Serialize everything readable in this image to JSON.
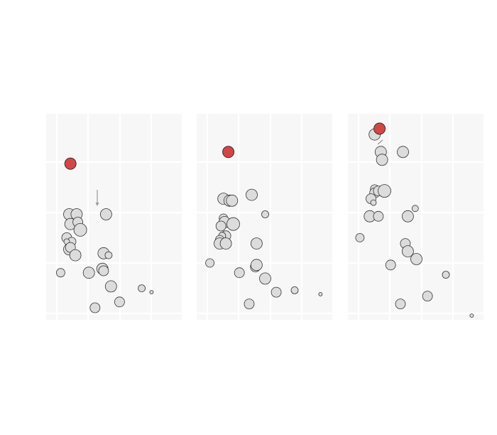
{
  "chart_data": [
    {
      "type": "scatter",
      "title": "",
      "xlabel": "",
      "ylabel": "",
      "xlim": [
        0,
        100
      ],
      "ylim": [
        0,
        100
      ],
      "grid": true,
      "legend": "none",
      "colors": {
        "default": "#dcdcdc",
        "highlight": "#d64545",
        "panel": "#f7f7f7",
        "grid": "#ffffff"
      },
      "points": [
        {
          "x": 14,
          "y": 78,
          "size": 8,
          "highlight": true
        },
        {
          "x": 13,
          "y": 52,
          "size": 8
        },
        {
          "x": 19,
          "y": 52,
          "size": 8
        },
        {
          "x": 14,
          "y": 47,
          "size": 8
        },
        {
          "x": 20,
          "y": 48,
          "size": 7
        },
        {
          "x": 22,
          "y": 44,
          "size": 9
        },
        {
          "x": 11,
          "y": 40,
          "size": 7
        },
        {
          "x": 15,
          "y": 38,
          "size": 6
        },
        {
          "x": 11,
          "y": 38,
          "size": 4
        },
        {
          "x": 13,
          "y": 34,
          "size": 8
        },
        {
          "x": 14,
          "y": 35,
          "size": 7
        },
        {
          "x": 18,
          "y": 31,
          "size": 8
        },
        {
          "x": 6,
          "y": 22,
          "size": 6
        },
        {
          "x": 43,
          "y": 52,
          "size": 8
        },
        {
          "x": 41,
          "y": 32,
          "size": 8
        },
        {
          "x": 45,
          "y": 31,
          "size": 5
        },
        {
          "x": 40,
          "y": 24,
          "size": 8
        },
        {
          "x": 41,
          "y": 23,
          "size": 7
        },
        {
          "x": 29,
          "y": 22,
          "size": 8
        },
        {
          "x": 47,
          "y": 15,
          "size": 8
        },
        {
          "x": 54,
          "y": 7,
          "size": 7
        },
        {
          "x": 34,
          "y": 4,
          "size": 7
        },
        {
          "x": 72,
          "y": 14,
          "size": 5
        },
        {
          "x": 80,
          "y": 12,
          "size": 2.5
        }
      ]
    },
    {
      "type": "scatter",
      "title": "",
      "xlabel": "",
      "ylabel": "",
      "xlim": [
        0,
        100
      ],
      "ylim": [
        0,
        100
      ],
      "grid": true,
      "legend": "none",
      "points": [
        {
          "x": 20,
          "y": 84,
          "size": 8,
          "highlight": true
        },
        {
          "x": 16,
          "y": 60,
          "size": 8
        },
        {
          "x": 21,
          "y": 59,
          "size": 8
        },
        {
          "x": 23,
          "y": 59,
          "size": 8
        },
        {
          "x": 16,
          "y": 50,
          "size": 6
        },
        {
          "x": 17,
          "y": 48,
          "size": 8
        },
        {
          "x": 14,
          "y": 46,
          "size": 7
        },
        {
          "x": 24,
          "y": 47,
          "size": 9
        },
        {
          "x": 18,
          "y": 41,
          "size": 7
        },
        {
          "x": 15,
          "y": 41,
          "size": 5
        },
        {
          "x": 13,
          "y": 39,
          "size": 6
        },
        {
          "x": 13,
          "y": 37,
          "size": 8
        },
        {
          "x": 18,
          "y": 37,
          "size": 8
        },
        {
          "x": 39,
          "y": 62,
          "size": 8
        },
        {
          "x": 50,
          "y": 52,
          "size": 5
        },
        {
          "x": 43,
          "y": 37,
          "size": 8
        },
        {
          "x": 5,
          "y": 27,
          "size": 6
        },
        {
          "x": 42,
          "y": 25,
          "size": 7
        },
        {
          "x": 43,
          "y": 26,
          "size": 8
        },
        {
          "x": 29,
          "y": 22,
          "size": 7
        },
        {
          "x": 50,
          "y": 19,
          "size": 8
        },
        {
          "x": 59,
          "y": 12,
          "size": 7
        },
        {
          "x": 74,
          "y": 13,
          "size": 5
        },
        {
          "x": 37,
          "y": 6,
          "size": 7
        },
        {
          "x": 95,
          "y": 11,
          "size": 2.5
        }
      ]
    },
    {
      "type": "scatter",
      "title": "",
      "xlabel": "",
      "ylabel": "",
      "xlim": [
        0,
        100
      ],
      "ylim": [
        0,
        100
      ],
      "grid": true,
      "legend": "none",
      "points": [
        {
          "x": 20,
          "y": 96,
          "size": 8,
          "highlight": true
        },
        {
          "x": 16,
          "y": 93,
          "size": 8
        },
        {
          "x": 21,
          "y": 84,
          "size": 8
        },
        {
          "x": 22,
          "y": 80,
          "size": 8
        },
        {
          "x": 39,
          "y": 84,
          "size": 8
        },
        {
          "x": 16,
          "y": 65,
          "size": 6
        },
        {
          "x": 16,
          "y": 63,
          "size": 7
        },
        {
          "x": 19,
          "y": 64,
          "size": 7
        },
        {
          "x": 24,
          "y": 64,
          "size": 9
        },
        {
          "x": 13,
          "y": 60,
          "size": 7
        },
        {
          "x": 15,
          "y": 58,
          "size": 4
        },
        {
          "x": 12,
          "y": 51,
          "size": 8
        },
        {
          "x": 19,
          "y": 51,
          "size": 7
        },
        {
          "x": 43,
          "y": 51,
          "size": 8
        },
        {
          "x": 49,
          "y": 55,
          "size": 4.5
        },
        {
          "x": 4,
          "y": 40,
          "size": 6
        },
        {
          "x": 41,
          "y": 37,
          "size": 7
        },
        {
          "x": 43,
          "y": 33,
          "size": 8
        },
        {
          "x": 50,
          "y": 29,
          "size": 8
        },
        {
          "x": 29,
          "y": 26,
          "size": 7
        },
        {
          "x": 74,
          "y": 21,
          "size": 5
        },
        {
          "x": 59,
          "y": 10,
          "size": 7
        },
        {
          "x": 37,
          "y": 6,
          "size": 7
        },
        {
          "x": 95,
          "y": 0,
          "size": 2.5
        }
      ]
    }
  ]
}
